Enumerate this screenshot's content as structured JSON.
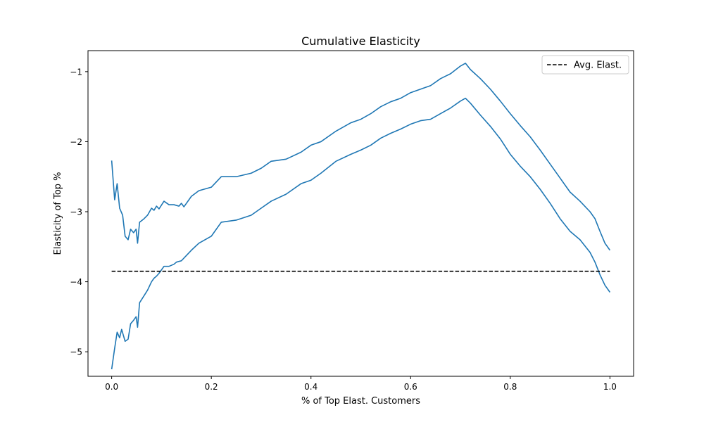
{
  "chart_data": {
    "type": "line",
    "title": "Cumulative Elasticity",
    "xlabel": "% of Top Elast. Customers",
    "ylabel": "Elasticity of Top %",
    "xlim": [
      -0.0475,
      1.0475
    ],
    "ylim": [
      -5.35,
      -0.7
    ],
    "xticks": [
      0.0,
      0.2,
      0.4,
      0.6,
      0.8,
      1.0
    ],
    "xtick_labels": [
      "0.0",
      "0.2",
      "0.4",
      "0.6",
      "0.8",
      "1.0"
    ],
    "yticks": [
      -5,
      -4,
      -3,
      -2,
      -1
    ],
    "ytick_labels": [
      "−5",
      "−4",
      "−3",
      "−2",
      "−1"
    ],
    "grid": false,
    "legend": {
      "position": "top-right",
      "entries": [
        "Avg. Elast."
      ]
    },
    "reference_line": {
      "name": "Avg. Elast.",
      "y": -3.85,
      "x_range": [
        0.0,
        1.0
      ],
      "style": "dashed",
      "color": "#000000"
    },
    "series": [
      {
        "color": "#1f77b4",
        "points": [
          [
            0.0,
            -2.27
          ],
          [
            0.006,
            -2.83
          ],
          [
            0.011,
            -2.6
          ],
          [
            0.016,
            -2.95
          ],
          [
            0.022,
            -3.05
          ],
          [
            0.027,
            -3.35
          ],
          [
            0.033,
            -3.4
          ],
          [
            0.038,
            -3.25
          ],
          [
            0.044,
            -3.3
          ],
          [
            0.049,
            -3.25
          ],
          [
            0.052,
            -3.45
          ],
          [
            0.056,
            -3.15
          ],
          [
            0.065,
            -3.1
          ],
          [
            0.072,
            -3.05
          ],
          [
            0.08,
            -2.95
          ],
          [
            0.085,
            -2.98
          ],
          [
            0.09,
            -2.92
          ],
          [
            0.095,
            -2.96
          ],
          [
            0.105,
            -2.85
          ],
          [
            0.115,
            -2.9
          ],
          [
            0.125,
            -2.9
          ],
          [
            0.135,
            -2.92
          ],
          [
            0.14,
            -2.88
          ],
          [
            0.145,
            -2.93
          ],
          [
            0.16,
            -2.78
          ],
          [
            0.175,
            -2.7
          ],
          [
            0.2,
            -2.65
          ],
          [
            0.22,
            -2.5
          ],
          [
            0.25,
            -2.5
          ],
          [
            0.28,
            -2.45
          ],
          [
            0.3,
            -2.38
          ],
          [
            0.32,
            -2.28
          ],
          [
            0.35,
            -2.25
          ],
          [
            0.38,
            -2.15
          ],
          [
            0.4,
            -2.05
          ],
          [
            0.42,
            -2.0
          ],
          [
            0.45,
            -1.85
          ],
          [
            0.48,
            -1.73
          ],
          [
            0.5,
            -1.68
          ],
          [
            0.52,
            -1.6
          ],
          [
            0.54,
            -1.5
          ],
          [
            0.56,
            -1.43
          ],
          [
            0.58,
            -1.38
          ],
          [
            0.6,
            -1.3
          ],
          [
            0.62,
            -1.25
          ],
          [
            0.64,
            -1.2
          ],
          [
            0.66,
            -1.1
          ],
          [
            0.68,
            -1.03
          ],
          [
            0.7,
            -0.92
          ],
          [
            0.71,
            -0.88
          ],
          [
            0.72,
            -0.97
          ],
          [
            0.74,
            -1.1
          ],
          [
            0.76,
            -1.25
          ],
          [
            0.78,
            -1.42
          ],
          [
            0.8,
            -1.6
          ],
          [
            0.82,
            -1.77
          ],
          [
            0.84,
            -1.93
          ],
          [
            0.86,
            -2.12
          ],
          [
            0.88,
            -2.32
          ],
          [
            0.9,
            -2.52
          ],
          [
            0.92,
            -2.72
          ],
          [
            0.94,
            -2.85
          ],
          [
            0.96,
            -3.0
          ],
          [
            0.97,
            -3.1
          ],
          [
            0.98,
            -3.28
          ],
          [
            0.99,
            -3.45
          ],
          [
            1.0,
            -3.55
          ]
        ]
      },
      {
        "color": "#1f77b4",
        "points": [
          [
            0.0,
            -5.25
          ],
          [
            0.006,
            -4.95
          ],
          [
            0.011,
            -4.72
          ],
          [
            0.016,
            -4.8
          ],
          [
            0.02,
            -4.68
          ],
          [
            0.027,
            -4.85
          ],
          [
            0.033,
            -4.82
          ],
          [
            0.038,
            -4.6
          ],
          [
            0.044,
            -4.55
          ],
          [
            0.049,
            -4.5
          ],
          [
            0.052,
            -4.65
          ],
          [
            0.056,
            -4.3
          ],
          [
            0.065,
            -4.2
          ],
          [
            0.072,
            -4.12
          ],
          [
            0.08,
            -4.0
          ],
          [
            0.085,
            -3.95
          ],
          [
            0.09,
            -3.92
          ],
          [
            0.095,
            -3.88
          ],
          [
            0.105,
            -3.78
          ],
          [
            0.115,
            -3.78
          ],
          [
            0.125,
            -3.75
          ],
          [
            0.13,
            -3.72
          ],
          [
            0.14,
            -3.7
          ],
          [
            0.16,
            -3.55
          ],
          [
            0.175,
            -3.45
          ],
          [
            0.2,
            -3.35
          ],
          [
            0.22,
            -3.15
          ],
          [
            0.25,
            -3.12
          ],
          [
            0.28,
            -3.05
          ],
          [
            0.3,
            -2.95
          ],
          [
            0.32,
            -2.85
          ],
          [
            0.35,
            -2.75
          ],
          [
            0.38,
            -2.6
          ],
          [
            0.4,
            -2.55
          ],
          [
            0.42,
            -2.45
          ],
          [
            0.45,
            -2.28
          ],
          [
            0.48,
            -2.18
          ],
          [
            0.5,
            -2.12
          ],
          [
            0.52,
            -2.05
          ],
          [
            0.54,
            -1.95
          ],
          [
            0.56,
            -1.88
          ],
          [
            0.58,
            -1.82
          ],
          [
            0.6,
            -1.75
          ],
          [
            0.62,
            -1.7
          ],
          [
            0.64,
            -1.68
          ],
          [
            0.66,
            -1.6
          ],
          [
            0.68,
            -1.52
          ],
          [
            0.7,
            -1.42
          ],
          [
            0.71,
            -1.38
          ],
          [
            0.72,
            -1.45
          ],
          [
            0.74,
            -1.62
          ],
          [
            0.76,
            -1.78
          ],
          [
            0.78,
            -1.96
          ],
          [
            0.8,
            -2.18
          ],
          [
            0.82,
            -2.35
          ],
          [
            0.84,
            -2.5
          ],
          [
            0.86,
            -2.68
          ],
          [
            0.88,
            -2.88
          ],
          [
            0.9,
            -3.1
          ],
          [
            0.92,
            -3.28
          ],
          [
            0.94,
            -3.4
          ],
          [
            0.96,
            -3.58
          ],
          [
            0.97,
            -3.72
          ],
          [
            0.98,
            -3.9
          ],
          [
            0.99,
            -4.05
          ],
          [
            1.0,
            -4.15
          ]
        ]
      }
    ]
  }
}
